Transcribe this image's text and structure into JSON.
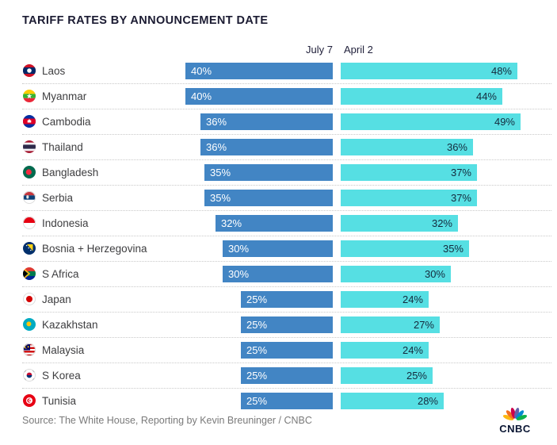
{
  "title": "TARIFF RATES BY ANNOUNCEMENT DATE",
  "source": "Source: The White House, Reporting by Kevin Breuninger / CNBC",
  "logo_text": "CNBC",
  "colors": {
    "july7_bar": "#4285c4",
    "april2_bar": "#56dfe3",
    "title_text": "#1b1b32",
    "country_text": "#3e3e40",
    "value_on_july_bar": "#ffffff",
    "value_on_april_bar": "#142a3d",
    "source_text": "#7a7a7a",
    "row_separator": "#c9c9c9"
  },
  "chart_data": {
    "type": "bar",
    "orientation": "horizontal",
    "title": "TARIFF RATES BY ANNOUNCEMENT DATE",
    "unit": "%",
    "grid": false,
    "legend_position": "top",
    "value_labels_shown": true,
    "xlim": [
      0,
      50
    ],
    "categories": [
      "Laos",
      "Myanmar",
      "Cambodia",
      "Thailand",
      "Bangladesh",
      "Serbia",
      "Indonesia",
      "Bosnia + Herzegovina",
      "S Africa",
      "Japan",
      "Kazakhstan",
      "Malaysia",
      "S Korea",
      "Tunisia"
    ],
    "flags": [
      "laos",
      "myanmar",
      "cambodia",
      "thailand",
      "bangladesh",
      "serbia",
      "indonesia",
      "bosnia-herzegovina",
      "south-africa",
      "japan",
      "kazakhstan",
      "malaysia",
      "south-korea",
      "tunisia"
    ],
    "series": [
      {
        "name": "July 7",
        "color": "#4285c4",
        "values": [
          40,
          40,
          36,
          36,
          35,
          35,
          32,
          30,
          30,
          25,
          25,
          25,
          25,
          25
        ]
      },
      {
        "name": "April 2",
        "color": "#56dfe3",
        "values": [
          48,
          44,
          49,
          36,
          37,
          37,
          32,
          35,
          30,
          24,
          27,
          24,
          25,
          28
        ]
      }
    ]
  }
}
